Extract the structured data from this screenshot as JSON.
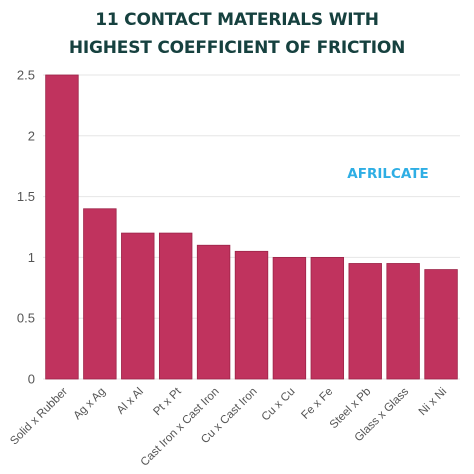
{
  "chart_data": {
    "type": "bar",
    "title_lines": [
      "11 CONTACT MATERIALS WITH",
      "HIGHEST COEFFICIENT OF FRICTION"
    ],
    "xlabel": "",
    "ylabel": "",
    "categories": [
      "Solid x Rubber",
      "Ag x Ag",
      "Al x Al",
      "Pt x Pt",
      "Cast Iron x Cast Iron",
      "Cu x Cast Iron",
      "Cu x Cu",
      "Fe x Fe",
      "Steel x Pb",
      "Glass x Glass",
      "Ni x Ni"
    ],
    "values": [
      2.5,
      1.4,
      1.2,
      1.2,
      1.1,
      1.05,
      1.0,
      1.0,
      0.95,
      0.95,
      0.9
    ],
    "ylim": [
      0,
      2.5
    ],
    "yticks": [
      "0",
      "0.5",
      "1",
      "1.5",
      "2",
      "2.5"
    ],
    "ytick_values": [
      0,
      0.5,
      1,
      1.5,
      2,
      2.5
    ],
    "grid": true,
    "legend": "none",
    "watermark": "AFRILCATE"
  },
  "colors": {
    "bar": "#c0335e",
    "bar_edge": "#9c2448",
    "title": "#16413f",
    "grid": "#e6e6e6",
    "watermark": "#2eaee4"
  }
}
